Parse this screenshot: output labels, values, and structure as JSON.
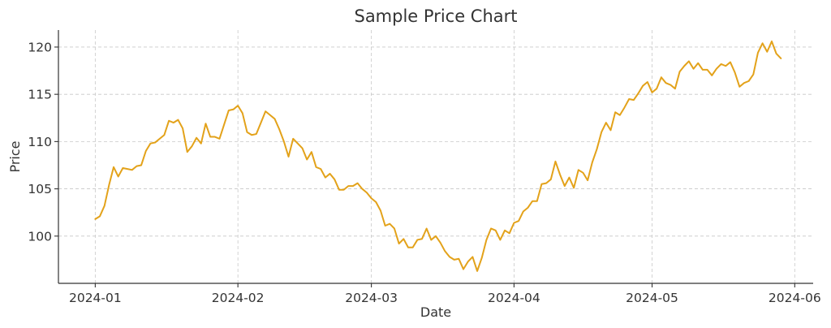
{
  "chart_data": {
    "type": "line",
    "title": "Sample Price Chart",
    "xlabel": "Date",
    "ylabel": "Price",
    "xlim": [
      "2023-12-24",
      "2024-06-05"
    ],
    "ylim": [
      95.0,
      121.8
    ],
    "x_ticks": [
      "2024-01-01",
      "2024-02-01",
      "2024-03-01",
      "2024-04-01",
      "2024-05-01",
      "2024-06-01"
    ],
    "x_tick_labels": [
      "2024-01",
      "2024-02",
      "2024-03",
      "2024-04",
      "2024-05",
      "2024-06"
    ],
    "y_ticks": [
      100,
      105,
      110,
      115,
      120
    ],
    "y_tick_labels": [
      "100",
      "105",
      "110",
      "115",
      "120"
    ],
    "grid": true,
    "series": [
      {
        "color": "#e3a21a",
        "points": [
          [
            "2024-01-01",
            101.8
          ],
          [
            "2024-01-02",
            102.1
          ],
          [
            "2024-01-03",
            103.2
          ],
          [
            "2024-01-04",
            105.4
          ],
          [
            "2024-01-05",
            107.3
          ],
          [
            "2024-01-06",
            106.3
          ],
          [
            "2024-01-07",
            107.2
          ],
          [
            "2024-01-08",
            107.1
          ],
          [
            "2024-01-09",
            107.0
          ],
          [
            "2024-01-10",
            107.4
          ],
          [
            "2024-01-11",
            107.5
          ],
          [
            "2024-01-12",
            109.0
          ],
          [
            "2024-01-13",
            109.8
          ],
          [
            "2024-01-14",
            109.9
          ],
          [
            "2024-01-15",
            110.3
          ],
          [
            "2024-01-16",
            110.7
          ],
          [
            "2024-01-17",
            112.2
          ],
          [
            "2024-01-18",
            112.0
          ],
          [
            "2024-01-19",
            112.3
          ],
          [
            "2024-01-20",
            111.4
          ],
          [
            "2024-01-21",
            108.9
          ],
          [
            "2024-01-22",
            109.5
          ],
          [
            "2024-01-23",
            110.4
          ],
          [
            "2024-01-24",
            109.8
          ],
          [
            "2024-01-25",
            111.9
          ],
          [
            "2024-01-26",
            110.5
          ],
          [
            "2024-01-27",
            110.5
          ],
          [
            "2024-01-28",
            110.3
          ],
          [
            "2024-01-29",
            111.8
          ],
          [
            "2024-01-30",
            113.3
          ],
          [
            "2024-01-31",
            113.4
          ],
          [
            "2024-02-01",
            113.8
          ],
          [
            "2024-02-02",
            113.0
          ],
          [
            "2024-02-03",
            111.0
          ],
          [
            "2024-02-04",
            110.7
          ],
          [
            "2024-02-05",
            110.8
          ],
          [
            "2024-02-06",
            112.0
          ],
          [
            "2024-02-07",
            113.2
          ],
          [
            "2024-02-08",
            112.8
          ],
          [
            "2024-02-09",
            112.4
          ],
          [
            "2024-02-10",
            111.3
          ],
          [
            "2024-02-11",
            110.0
          ],
          [
            "2024-02-12",
            108.4
          ],
          [
            "2024-02-13",
            110.3
          ],
          [
            "2024-02-14",
            109.8
          ],
          [
            "2024-02-15",
            109.3
          ],
          [
            "2024-02-16",
            108.1
          ],
          [
            "2024-02-17",
            108.9
          ],
          [
            "2024-02-18",
            107.3
          ],
          [
            "2024-02-19",
            107.1
          ],
          [
            "2024-02-20",
            106.2
          ],
          [
            "2024-02-21",
            106.6
          ],
          [
            "2024-02-22",
            106.0
          ],
          [
            "2024-02-23",
            104.9
          ],
          [
            "2024-02-24",
            104.9
          ],
          [
            "2024-02-25",
            105.3
          ],
          [
            "2024-02-26",
            105.3
          ],
          [
            "2024-02-27",
            105.6
          ],
          [
            "2024-02-28",
            105.0
          ],
          [
            "2024-02-29",
            104.6
          ],
          [
            "2024-03-01",
            104.0
          ],
          [
            "2024-03-02",
            103.6
          ],
          [
            "2024-03-03",
            102.7
          ],
          [
            "2024-03-04",
            101.1
          ],
          [
            "2024-03-05",
            101.3
          ],
          [
            "2024-03-06",
            100.8
          ],
          [
            "2024-03-07",
            99.2
          ],
          [
            "2024-03-08",
            99.7
          ],
          [
            "2024-03-09",
            98.8
          ],
          [
            "2024-03-10",
            98.8
          ],
          [
            "2024-03-11",
            99.6
          ],
          [
            "2024-03-12",
            99.7
          ],
          [
            "2024-03-13",
            100.8
          ],
          [
            "2024-03-14",
            99.6
          ],
          [
            "2024-03-15",
            100.0
          ],
          [
            "2024-03-16",
            99.3
          ],
          [
            "2024-03-17",
            98.4
          ],
          [
            "2024-03-18",
            97.8
          ],
          [
            "2024-03-19",
            97.5
          ],
          [
            "2024-03-20",
            97.6
          ],
          [
            "2024-03-21",
            96.5
          ],
          [
            "2024-03-22",
            97.3
          ],
          [
            "2024-03-23",
            97.8
          ],
          [
            "2024-03-24",
            96.3
          ],
          [
            "2024-03-25",
            97.7
          ],
          [
            "2024-03-26",
            99.6
          ],
          [
            "2024-03-27",
            100.8
          ],
          [
            "2024-03-28",
            100.6
          ],
          [
            "2024-03-29",
            99.6
          ],
          [
            "2024-03-30",
            100.6
          ],
          [
            "2024-03-31",
            100.3
          ],
          [
            "2024-04-01",
            101.4
          ],
          [
            "2024-04-02",
            101.6
          ],
          [
            "2024-04-03",
            102.6
          ],
          [
            "2024-04-04",
            103.0
          ],
          [
            "2024-04-05",
            103.7
          ],
          [
            "2024-04-06",
            103.7
          ],
          [
            "2024-04-07",
            105.5
          ],
          [
            "2024-04-08",
            105.6
          ],
          [
            "2024-04-09",
            106.0
          ],
          [
            "2024-04-10",
            107.9
          ],
          [
            "2024-04-11",
            106.5
          ],
          [
            "2024-04-12",
            105.3
          ],
          [
            "2024-04-13",
            106.2
          ],
          [
            "2024-04-14",
            105.1
          ],
          [
            "2024-04-15",
            107.0
          ],
          [
            "2024-04-16",
            106.7
          ],
          [
            "2024-04-17",
            105.9
          ],
          [
            "2024-04-18",
            107.8
          ],
          [
            "2024-04-19",
            109.2
          ],
          [
            "2024-04-20",
            111.0
          ],
          [
            "2024-04-21",
            112.0
          ],
          [
            "2024-04-22",
            111.2
          ],
          [
            "2024-04-23",
            113.1
          ],
          [
            "2024-04-24",
            112.8
          ],
          [
            "2024-04-25",
            113.6
          ],
          [
            "2024-04-26",
            114.5
          ],
          [
            "2024-04-27",
            114.4
          ],
          [
            "2024-04-28",
            115.1
          ],
          [
            "2024-04-29",
            115.9
          ],
          [
            "2024-04-30",
            116.3
          ],
          [
            "2024-05-01",
            115.2
          ],
          [
            "2024-05-02",
            115.6
          ],
          [
            "2024-05-03",
            116.8
          ],
          [
            "2024-05-04",
            116.2
          ],
          [
            "2024-05-05",
            116.0
          ],
          [
            "2024-05-06",
            115.6
          ],
          [
            "2024-05-07",
            117.4
          ],
          [
            "2024-05-08",
            118.0
          ],
          [
            "2024-05-09",
            118.5
          ],
          [
            "2024-05-10",
            117.7
          ],
          [
            "2024-05-11",
            118.3
          ],
          [
            "2024-05-12",
            117.6
          ],
          [
            "2024-05-13",
            117.6
          ],
          [
            "2024-05-14",
            117.0
          ],
          [
            "2024-05-15",
            117.7
          ],
          [
            "2024-05-16",
            118.2
          ],
          [
            "2024-05-17",
            118.0
          ],
          [
            "2024-05-18",
            118.4
          ],
          [
            "2024-05-19",
            117.3
          ],
          [
            "2024-05-20",
            115.8
          ],
          [
            "2024-05-21",
            116.2
          ],
          [
            "2024-05-22",
            116.4
          ],
          [
            "2024-05-23",
            117.1
          ],
          [
            "2024-05-24",
            119.4
          ],
          [
            "2024-05-25",
            120.4
          ],
          [
            "2024-05-26",
            119.5
          ],
          [
            "2024-05-27",
            120.6
          ],
          [
            "2024-05-28",
            119.3
          ],
          [
            "2024-05-29",
            118.8
          ]
        ]
      }
    ]
  }
}
